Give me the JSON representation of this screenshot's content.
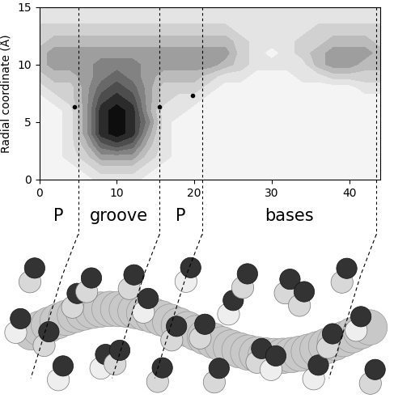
{
  "chart_data": {
    "type": "contour",
    "y_label": "Radial coordinate (Å)",
    "x": [
      0,
      2,
      4,
      6,
      8,
      10,
      12,
      14,
      16,
      18,
      20,
      22,
      24,
      26,
      28,
      30,
      32,
      34,
      36,
      38,
      40,
      42,
      44
    ],
    "y": [
      0,
      1,
      2,
      3,
      4,
      5,
      6,
      7,
      8,
      9,
      10,
      11,
      12,
      13,
      14,
      15
    ],
    "cells": [
      [
        0,
        0,
        0,
        0,
        1,
        1,
        1,
        0,
        0,
        0,
        0,
        0,
        0,
        0,
        0,
        0,
        0,
        0,
        0,
        0,
        0,
        0,
        0
      ],
      [
        0,
        0,
        0,
        1,
        2,
        2,
        2,
        1,
        0,
        0,
        0,
        0,
        0,
        0,
        0,
        0,
        0,
        0,
        0,
        0,
        0,
        0,
        0
      ],
      [
        0,
        0,
        1,
        2,
        4,
        4,
        4,
        2,
        1,
        0,
        0,
        0,
        0,
        0,
        0,
        0,
        0,
        0,
        0,
        0,
        0,
        0,
        0
      ],
      [
        0,
        0,
        1,
        3,
        6,
        7,
        6,
        3,
        1,
        0,
        0,
        0,
        0,
        0,
        0,
        0,
        0,
        0,
        0,
        0,
        0,
        0,
        0
      ],
      [
        0,
        0,
        1,
        4,
        8,
        9,
        8,
        4,
        1,
        0,
        0,
        0,
        0,
        0,
        0,
        0,
        0,
        0,
        0,
        0,
        0,
        0,
        0
      ],
      [
        0,
        0,
        1,
        4,
        8,
        9,
        8,
        5,
        1,
        0,
        0,
        0,
        0,
        0,
        0,
        0,
        0,
        0,
        0,
        0,
        0,
        0,
        0
      ],
      [
        0,
        0,
        1,
        4,
        8,
        9,
        8,
        4,
        1,
        1,
        0,
        0,
        0,
        0,
        0,
        0,
        0,
        0,
        0,
        0,
        0,
        0,
        0
      ],
      [
        0,
        1,
        2,
        4,
        7,
        8,
        7,
        4,
        2,
        1,
        1,
        0,
        0,
        0,
        0,
        0,
        0,
        0,
        0,
        0,
        0,
        0,
        0
      ],
      [
        1,
        2,
        2,
        4,
        6,
        7,
        6,
        4,
        2,
        2,
        2,
        1,
        0,
        0,
        0,
        0,
        0,
        0,
        0,
        0,
        0,
        1,
        1
      ],
      [
        2,
        3,
        3,
        4,
        5,
        6,
        5,
        4,
        3,
        3,
        3,
        2,
        1,
        1,
        0,
        0,
        0,
        1,
        1,
        2,
        2,
        2,
        2
      ],
      [
        3,
        4,
        4,
        4,
        5,
        5,
        5,
        4,
        4,
        4,
        4,
        4,
        3,
        2,
        1,
        1,
        1,
        1,
        3,
        4,
        4,
        3,
        3
      ],
      [
        3,
        4,
        4,
        4,
        4,
        4,
        4,
        4,
        4,
        4,
        4,
        4,
        4,
        2,
        1,
        0,
        1,
        2,
        3,
        4,
        4,
        4,
        3
      ],
      [
        2,
        3,
        3,
        3,
        3,
        3,
        3,
        3,
        3,
        3,
        3,
        3,
        3,
        2,
        1,
        1,
        1,
        2,
        2,
        3,
        3,
        3,
        2
      ],
      [
        2,
        2,
        2,
        2,
        2,
        2,
        2,
        2,
        2,
        2,
        2,
        2,
        2,
        1,
        1,
        1,
        1,
        1,
        2,
        2,
        2,
        2,
        2
      ],
      [
        1,
        1,
        1,
        1,
        1,
        1,
        1,
        1,
        1,
        1,
        1,
        1,
        1,
        1,
        1,
        1,
        1,
        1,
        1,
        1,
        1,
        1,
        1
      ],
      [
        1,
        1,
        1,
        1,
        1,
        1,
        1,
        1,
        1,
        1,
        1,
        1,
        1,
        1,
        1,
        1,
        1,
        1,
        1,
        1,
        1,
        1,
        1
      ]
    ],
    "points": {
      "x": [
        4.5,
        15.5,
        19.8
      ],
      "y": [
        6.3,
        6.3,
        7.3
      ]
    },
    "boundaries": [
      5,
      15.5,
      21,
      43.5
    ],
    "regions": [
      "P",
      "groove",
      "P",
      "bases"
    ],
    "xlim": [
      0,
      44
    ],
    "ylim": [
      0,
      15
    ],
    "xticks": [
      0,
      10,
      20,
      30,
      40
    ],
    "yticks": [
      0,
      5,
      10,
      15
    ]
  }
}
